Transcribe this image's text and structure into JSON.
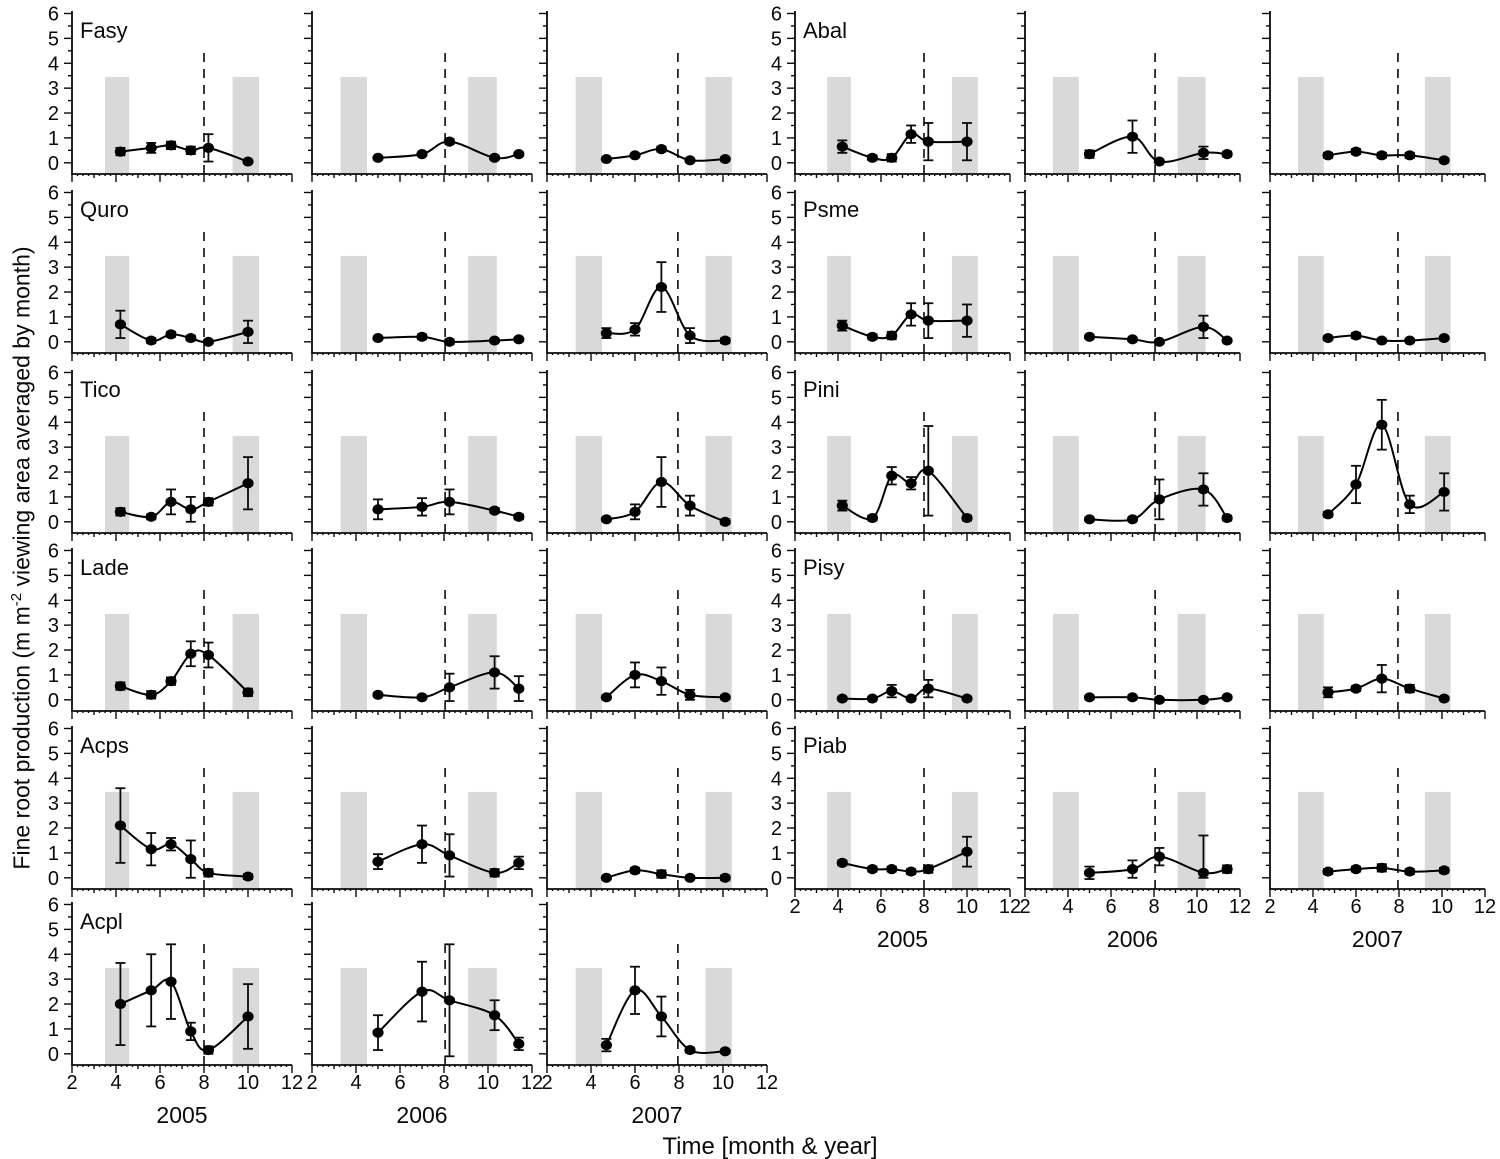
{
  "labels": {
    "ylabel_pre": "Fine root production (m m",
    "ylabel_sup": "-2",
    "ylabel_post": " viewing area averaged by month)",
    "xlabel": "Time [month & year]"
  },
  "chart_data": {
    "type": "line",
    "title": "",
    "xlabel": "Time [month & year]",
    "ylabel": "Fine root production (m m^-2 viewing area averaged by month)",
    "x_unit": "month",
    "xlim": [
      2,
      12
    ],
    "ylim": [
      0,
      6
    ],
    "x_ticks": [
      2,
      4,
      6,
      8,
      10,
      12
    ],
    "y_ticks": [
      6,
      5,
      4,
      3,
      2,
      1,
      0
    ],
    "grid": false,
    "legend": false,
    "years": [
      "2005",
      "2006",
      "2007"
    ],
    "months": {
      "2005": [
        4.2,
        5.6,
        6.5,
        7.4,
        8.2,
        10.0
      ],
      "2006": [
        5.0,
        7.0,
        8.25,
        10.3,
        11.4
      ],
      "2007": [
        4.7,
        6.0,
        7.2,
        8.5,
        10.1
      ]
    },
    "dashed_line_month": {
      "2005": 8.0,
      "2006": 8.05,
      "2007": 7.95
    },
    "shaded_bands": {
      "2005": [
        [
          3.5,
          4.6
        ],
        [
          9.3,
          10.5
        ]
      ],
      "2006": [
        [
          3.3,
          4.5
        ],
        [
          9.1,
          10.4
        ]
      ],
      "2007": [
        [
          3.3,
          4.5
        ],
        [
          9.2,
          10.4
        ]
      ],
      "top": 3.45,
      "color": "#d9d9d9"
    },
    "line_color": "#000000",
    "marker": "filled-circle",
    "blocks": [
      {
        "side": "left",
        "species": [
          {
            "name": "Fasy",
            "data": {
              "2005": {
                "values": [
                  0.45,
                  0.6,
                  0.7,
                  0.5,
                  0.6,
                  0.05
                ],
                "errors": [
                  0.15,
                  0.2,
                  0.15,
                  0.15,
                  0.55,
                  0.05
                ]
              },
              "2006": {
                "values": [
                  0.2,
                  0.35,
                  0.85,
                  0.2,
                  0.35
                ],
                "errors": [
                  0.05,
                  0.05,
                  0.1,
                  0.05,
                  0.05
                ]
              },
              "2007": {
                "values": [
                  0.15,
                  0.3,
                  0.55,
                  0.1,
                  0.15
                ],
                "errors": [
                  0.05,
                  0.05,
                  0.1,
                  0.05,
                  0.05
                ]
              }
            }
          },
          {
            "name": "Quro",
            "data": {
              "2005": {
                "values": [
                  0.7,
                  0.05,
                  0.3,
                  0.15,
                  0.0,
                  0.4
                ],
                "errors": [
                  0.55,
                  0.1,
                  0.1,
                  0.1,
                  0.05,
                  0.45
                ]
              },
              "2006": {
                "values": [
                  0.15,
                  0.2,
                  0.0,
                  0.05,
                  0.1
                ],
                "errors": [
                  0.05,
                  0.1,
                  0.1,
                  0.05,
                  0.05
                ]
              },
              "2007": {
                "values": [
                  0.35,
                  0.5,
                  2.2,
                  0.25,
                  0.05
                ],
                "errors": [
                  0.2,
                  0.25,
                  1.0,
                  0.3,
                  0.1
                ]
              }
            }
          },
          {
            "name": "Tico",
            "data": {
              "2005": {
                "values": [
                  0.4,
                  0.2,
                  0.8,
                  0.5,
                  0.8,
                  1.55
                ],
                "errors": [
                  0.15,
                  0.1,
                  0.5,
                  0.5,
                  0.15,
                  1.05
                ]
              },
              "2006": {
                "values": [
                  0.5,
                  0.6,
                  0.8,
                  0.45,
                  0.2
                ],
                "errors": [
                  0.4,
                  0.35,
                  0.5,
                  0.1,
                  0.1
                ]
              },
              "2007": {
                "values": [
                  0.1,
                  0.4,
                  1.6,
                  0.65,
                  0.0
                ],
                "errors": [
                  0.05,
                  0.3,
                  1.0,
                  0.4,
                  0.1
                ]
              }
            }
          },
          {
            "name": "Lade",
            "data": {
              "2005": {
                "values": [
                  0.55,
                  0.2,
                  0.75,
                  1.85,
                  1.8,
                  0.3
                ],
                "errors": [
                  0.15,
                  0.15,
                  0.15,
                  0.5,
                  0.5,
                  0.15
                ]
              },
              "2006": {
                "values": [
                  0.2,
                  0.1,
                  0.5,
                  1.1,
                  0.45
                ],
                "errors": [
                  0.05,
                  0.05,
                  0.55,
                  0.65,
                  0.5
                ]
              },
              "2007": {
                "values": [
                  0.1,
                  1.0,
                  0.75,
                  0.2,
                  0.1
                ],
                "errors": [
                  0.05,
                  0.5,
                  0.55,
                  0.2,
                  0.05
                ]
              }
            }
          },
          {
            "name": "Acps",
            "data": {
              "2005": {
                "values": [
                  2.1,
                  1.15,
                  1.35,
                  0.75,
                  0.2,
                  0.05
                ],
                "errors": [
                  1.5,
                  0.65,
                  0.25,
                  0.75,
                  0.15,
                  0.1
                ]
              },
              "2006": {
                "values": [
                  0.65,
                  1.35,
                  0.9,
                  0.2,
                  0.6
                ],
                "errors": [
                  0.3,
                  0.75,
                  0.85,
                  0.15,
                  0.25
                ]
              },
              "2007": {
                "values": [
                  0.0,
                  0.3,
                  0.15,
                  0.0,
                  0.0
                ],
                "errors": [
                  0.05,
                  0.1,
                  0.15,
                  0.05,
                  0.1
                ]
              }
            }
          },
          {
            "name": "Acpl",
            "data": {
              "2005": {
                "values": [
                  2.0,
                  2.55,
                  2.9,
                  0.9,
                  0.15,
                  1.5
                ],
                "errors": [
                  1.65,
                  1.45,
                  1.5,
                  0.35,
                  0.15,
                  1.3
                ]
              },
              "2006": {
                "values": [
                  0.85,
                  2.5,
                  2.15,
                  1.55,
                  0.4
                ],
                "errors": [
                  0.7,
                  1.2,
                  2.25,
                  0.6,
                  0.25
                ]
              },
              "2007": {
                "values": [
                  0.35,
                  2.55,
                  1.5,
                  0.15,
                  0.1
                ],
                "errors": [
                  0.25,
                  0.95,
                  0.8,
                  0.1,
                  0.05
                ]
              }
            }
          }
        ]
      },
      {
        "side": "right",
        "species": [
          {
            "name": "Abal",
            "data": {
              "2005": {
                "values": [
                  0.65,
                  0.2,
                  0.2,
                  1.15,
                  0.85,
                  0.85
                ],
                "errors": [
                  0.25,
                  0.1,
                  0.15,
                  0.35,
                  0.75,
                  0.75
                ]
              },
              "2006": {
                "values": [
                  0.35,
                  1.05,
                  0.05,
                  0.4,
                  0.35
                ],
                "errors": [
                  0.15,
                  0.65,
                  0.05,
                  0.25,
                  0.1
                ]
              },
              "2007": {
                "values": [
                  0.3,
                  0.45,
                  0.3,
                  0.3,
                  0.1
                ],
                "errors": [
                  0.1,
                  0.1,
                  0.1,
                  0.1,
                  0.05
                ]
              }
            }
          },
          {
            "name": "Psme",
            "data": {
              "2005": {
                "values": [
                  0.65,
                  0.2,
                  0.25,
                  1.1,
                  0.85,
                  0.85
                ],
                "errors": [
                  0.2,
                  0.1,
                  0.15,
                  0.45,
                  0.7,
                  0.65
                ]
              },
              "2006": {
                "values": [
                  0.2,
                  0.1,
                  0.0,
                  0.6,
                  0.05
                ],
                "errors": [
                  0.05,
                  0.05,
                  0.05,
                  0.45,
                  0.05
                ]
              },
              "2007": {
                "values": [
                  0.15,
                  0.25,
                  0.05,
                  0.05,
                  0.15
                ],
                "errors": [
                  0.05,
                  0.1,
                  0.05,
                  0.05,
                  0.05
                ]
              }
            }
          },
          {
            "name": "Pini",
            "data": {
              "2005": {
                "values": [
                  0.65,
                  0.15,
                  1.85,
                  1.55,
                  2.05,
                  0.15
                ],
                "errors": [
                  0.2,
                  0.1,
                  0.35,
                  0.25,
                  1.8,
                  0.1
                ]
              },
              "2006": {
                "values": [
                  0.1,
                  0.1,
                  0.9,
                  1.3,
                  0.15
                ],
                "errors": [
                  0.05,
                  0.05,
                  0.8,
                  0.65,
                  0.1
                ]
              },
              "2007": {
                "values": [
                  0.3,
                  1.5,
                  3.9,
                  0.7,
                  1.2
                ],
                "errors": [
                  0.1,
                  0.75,
                  1.0,
                  0.35,
                  0.75
                ]
              }
            }
          },
          {
            "name": "Pisy",
            "data": {
              "2005": {
                "values": [
                  0.05,
                  0.05,
                  0.35,
                  0.05,
                  0.45,
                  0.05
                ],
                "errors": [
                  0.05,
                  0.05,
                  0.25,
                  0.05,
                  0.35,
                  0.05
                ]
              },
              "2006": {
                "values": [
                  0.1,
                  0.1,
                  0.0,
                  0.0,
                  0.1
                ],
                "errors": [
                  0.05,
                  0.05,
                  0.05,
                  0.05,
                  0.05
                ]
              },
              "2007": {
                "values": [
                  0.3,
                  0.45,
                  0.85,
                  0.45,
                  0.05
                ],
                "errors": [
                  0.2,
                  0.1,
                  0.55,
                  0.15,
                  0.05
                ]
              }
            }
          },
          {
            "name": "Piab",
            "data": {
              "2005": {
                "values": [
                  0.6,
                  0.35,
                  0.35,
                  0.25,
                  0.35,
                  1.05
                ],
                "errors": [
                  0.1,
                  0.1,
                  0.1,
                  0.1,
                  0.15,
                  0.6
                ]
              },
              "2006": {
                "values": [
                  0.2,
                  0.35,
                  0.85,
                  0.2,
                  0.35
                ],
                "errors": [
                  0.25,
                  0.35,
                  0.35,
                  [
                    0.2,
                    1.5
                  ],
                  0.15
                ]
              },
              "2007": {
                "values": [
                  0.25,
                  0.35,
                  0.4,
                  0.25,
                  0.3
                ],
                "errors": [
                  0.1,
                  0.1,
                  0.15,
                  0.1,
                  0.1
                ]
              }
            }
          }
        ]
      }
    ]
  }
}
